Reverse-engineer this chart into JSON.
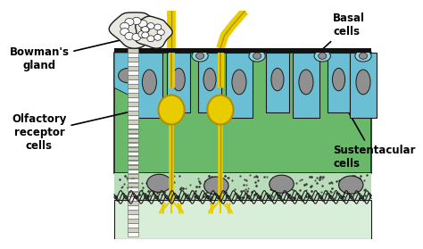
{
  "bg_color": "#ffffff",
  "labels": {
    "bowmans_gland": "Bowman's\ngland",
    "olfactory": "Olfactory\nreceptor\ncells",
    "basal": "Basal\ncells",
    "sustentacular": "Sustentacular\ncells"
  },
  "colors": {
    "green_main": "#6ab86a",
    "green_light": "#a8d8a8",
    "blue_cell": "#6bbfd4",
    "blue_cell_light": "#8dd4e0",
    "yellow": "#e8cc00",
    "yellow_outline": "#b09000",
    "gray_nucleus": "#909090",
    "gray_dark": "#606060",
    "dark_border": "#1a1a1a",
    "white": "#f8f8f8",
    "gland_fill": "#e8e8e0",
    "black": "#111111",
    "lamina_propria": "#b8ddb8",
    "subepithelial": "#d8eed8",
    "dots": "#333333",
    "duct_fill": "#d0d0c0",
    "green_cell_gap": "#5aa05a"
  },
  "figure_size": [
    4.74,
    2.79
  ],
  "dpi": 100
}
